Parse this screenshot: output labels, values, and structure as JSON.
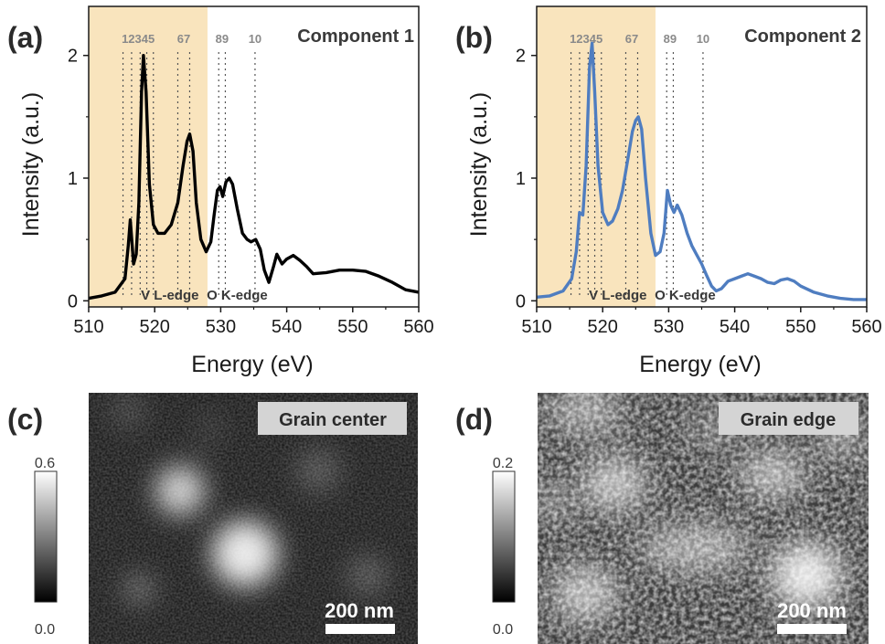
{
  "panels": {
    "a": "(a)",
    "b": "(b)",
    "c": "(c)",
    "d": "(d)"
  },
  "chart_data": [
    {
      "type": "line",
      "panel": "a",
      "title": "Component 1",
      "xlabel": "Energy (eV)",
      "ylabel": "Intensity (a.u.)",
      "xlim": [
        510,
        560
      ],
      "ylim": [
        -0.05,
        2.4
      ],
      "xticks": [
        "510",
        "520",
        "530",
        "540",
        "550",
        "560"
      ],
      "yticks": [
        "0",
        "1",
        "2"
      ],
      "line_color": "#000000",
      "highlight_range": [
        510,
        528
      ],
      "highlight_color": "#f9e4bd",
      "peak_positions": [
        515.2,
        516.5,
        517.8,
        518.8,
        519.8,
        523.5,
        525.3,
        529.7,
        530.7,
        535.2
      ],
      "peak_labels": [
        {
          "text": "12345",
          "x": 517.5
        },
        {
          "text": "67",
          "x": 524.4
        },
        {
          "text": "89",
          "x": 530.2
        },
        {
          "text": "10",
          "x": 535.2
        }
      ],
      "edge_labels": [
        {
          "text": "V L-edge",
          "x": 522.3
        },
        {
          "text": "O K-edge",
          "x": 532.5
        }
      ],
      "series": [
        {
          "x": [
            510,
            512,
            514,
            515.5,
            516,
            516.3,
            516.8,
            517.2,
            517.6,
            518.0,
            518.3,
            518.7,
            519.2,
            519.8,
            520.5,
            521.5,
            522.5,
            523.5,
            524.3,
            524.9,
            525.3,
            525.8,
            526.3,
            527,
            527.8,
            528.5,
            529,
            529.5,
            529.9,
            530.3,
            530.8,
            531.3,
            531.8,
            532.5,
            533.3,
            534,
            534.6,
            535.3,
            536,
            536.6,
            537.3,
            538,
            538.5,
            539.3,
            540,
            541,
            542,
            543,
            544,
            546,
            548,
            550,
            552,
            554,
            556,
            558,
            560
          ],
          "y": [
            0.02,
            0.04,
            0.07,
            0.18,
            0.45,
            0.66,
            0.3,
            0.38,
            0.8,
            1.7,
            2.0,
            1.7,
            0.95,
            0.62,
            0.55,
            0.55,
            0.62,
            0.8,
            1.1,
            1.3,
            1.36,
            1.22,
            0.8,
            0.5,
            0.4,
            0.48,
            0.7,
            0.9,
            0.93,
            0.85,
            0.97,
            1.0,
            0.95,
            0.75,
            0.55,
            0.5,
            0.48,
            0.5,
            0.42,
            0.25,
            0.15,
            0.28,
            0.38,
            0.3,
            0.34,
            0.37,
            0.33,
            0.28,
            0.22,
            0.23,
            0.25,
            0.25,
            0.24,
            0.2,
            0.15,
            0.09,
            0.07
          ]
        }
      ]
    },
    {
      "type": "line",
      "panel": "b",
      "title": "Component 2",
      "xlabel": "Energy (eV)",
      "ylabel": "Intensity (a.u.)",
      "xlim": [
        510,
        560
      ],
      "ylim": [
        -0.05,
        2.4
      ],
      "xticks": [
        "510",
        "520",
        "530",
        "540",
        "550",
        "560"
      ],
      "yticks": [
        "0",
        "1",
        "2"
      ],
      "line_color": "#4f7dc0",
      "highlight_range": [
        510,
        528
      ],
      "highlight_color": "#f9e4bd",
      "peak_positions": [
        515.2,
        516.5,
        517.8,
        518.8,
        519.8,
        523.5,
        525.3,
        529.7,
        530.7,
        535.2
      ],
      "peak_labels": [
        {
          "text": "12345",
          "x": 517.5
        },
        {
          "text": "67",
          "x": 524.4
        },
        {
          "text": "89",
          "x": 530.2
        },
        {
          "text": "10",
          "x": 535.2
        }
      ],
      "edge_labels": [
        {
          "text": "V L-edge",
          "x": 522.3
        },
        {
          "text": "O K-edge",
          "x": 532.5
        }
      ],
      "series": [
        {
          "x": [
            510,
            512,
            514,
            515.3,
            516,
            516.5,
            517,
            517.5,
            518.0,
            518.4,
            518.8,
            519.3,
            520,
            520.8,
            521.5,
            522.3,
            523,
            523.8,
            524.5,
            525,
            525.4,
            525.9,
            526.5,
            527.3,
            528,
            528.7,
            529.3,
            529.8,
            530.3,
            530.8,
            531.3,
            532,
            532.8,
            533.5,
            534.2,
            535,
            535.8,
            536.5,
            537.2,
            538,
            539,
            540,
            541,
            542,
            543,
            544,
            545,
            546,
            547,
            548,
            549,
            550,
            552,
            554,
            556,
            558,
            560
          ],
          "y": [
            0.03,
            0.04,
            0.08,
            0.18,
            0.4,
            0.72,
            0.7,
            1.1,
            1.9,
            2.1,
            1.7,
            1.1,
            0.72,
            0.62,
            0.65,
            0.75,
            0.9,
            1.15,
            1.38,
            1.47,
            1.5,
            1.4,
            1.0,
            0.55,
            0.37,
            0.4,
            0.55,
            0.9,
            0.78,
            0.72,
            0.78,
            0.7,
            0.55,
            0.45,
            0.38,
            0.3,
            0.2,
            0.12,
            0.08,
            0.1,
            0.16,
            0.18,
            0.2,
            0.22,
            0.2,
            0.18,
            0.15,
            0.14,
            0.17,
            0.18,
            0.16,
            0.12,
            0.07,
            0.04,
            0.02,
            0.01,
            0.01
          ]
        }
      ]
    }
  ],
  "images": {
    "c": {
      "title": "Grain center",
      "scalebar": "200 nm",
      "colorbar_max": "0.6",
      "colorbar_min": "0.0"
    },
    "d": {
      "title": "Grain edge",
      "scalebar": "200 nm",
      "colorbar_max": "0.2",
      "colorbar_min": "0.0"
    }
  }
}
